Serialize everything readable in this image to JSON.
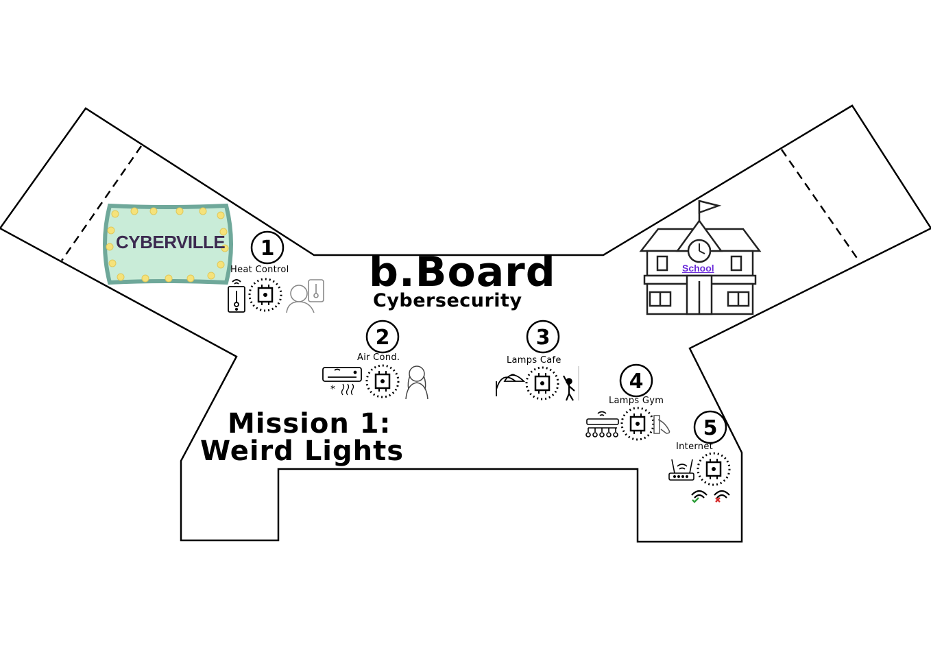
{
  "board": {
    "title": "b.Board",
    "subtitle": "Cybersecurity",
    "mission_line1": "Mission 1:",
    "mission_line2": "Weird Lights",
    "sign": "CYBERVILLE",
    "school": "School"
  },
  "stations": [
    {
      "number": "1",
      "label": "Heat Control"
    },
    {
      "number": "2",
      "label": "Air Cond."
    },
    {
      "number": "3",
      "label": "Lamps Cafe"
    },
    {
      "number": "4",
      "label": "Lamps Gym"
    },
    {
      "number": "5",
      "label": "Internet"
    }
  ],
  "colors": {
    "outline": "#000000",
    "sign_border": "#6fa89a",
    "sign_fill": "#c9ecd8",
    "sign_bulb": "#f5e27a",
    "school_link": "#6a2bd9",
    "wifi_ok": "#2e9e3a",
    "wifi_fail": "#d62828"
  }
}
